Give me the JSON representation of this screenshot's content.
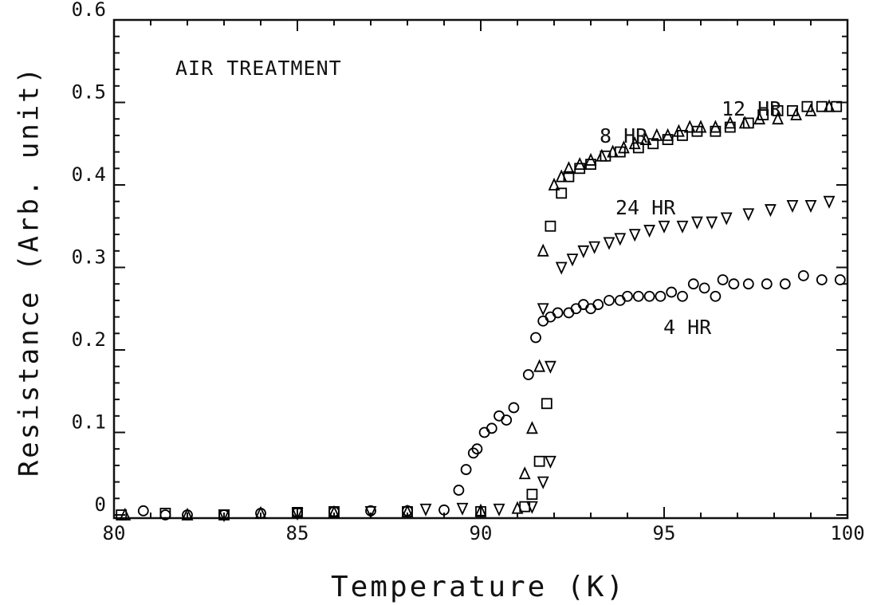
{
  "chart_data": {
    "type": "scatter",
    "annotations": [
      "AIR TREATMENT"
    ],
    "xlabel": "Temperature (K)",
    "ylabel": "Resistance (Arb. unit)",
    "xlim": [
      80,
      100
    ],
    "xticks": [
      80,
      85,
      90,
      95,
      100
    ],
    "ylim": [
      0,
      0.6
    ],
    "yticks": [
      0,
      0.1,
      0.2,
      0.3,
      0.4,
      0.5,
      0.6
    ],
    "series": [
      {
        "name": "4 HR",
        "marker": "circle",
        "color": "#000000",
        "x": [
          80.8,
          81.4,
          82,
          83,
          84,
          85,
          86,
          87,
          88,
          89,
          89.4,
          89.6,
          89.8,
          89.9,
          90.1,
          90.3,
          90.5,
          90.7,
          90.9,
          91.3,
          91.5,
          91.7,
          91.9,
          92.1,
          92.4,
          92.6,
          92.8,
          93,
          93.2,
          93.5,
          93.8,
          94,
          94.3,
          94.6,
          94.9,
          95.2,
          95.5,
          95.8,
          96.1,
          96.4,
          96.6,
          96.9,
          97.3,
          97.8,
          98.3,
          98.8,
          99.3,
          99.8
        ],
        "values": [
          0.005,
          0,
          0,
          0,
          0.002,
          0.003,
          0.004,
          0.005,
          0.005,
          0.006,
          0.03,
          0.055,
          0.075,
          0.08,
          0.1,
          0.105,
          0.12,
          0.115,
          0.13,
          0.17,
          0.215,
          0.235,
          0.24,
          0.245,
          0.245,
          0.25,
          0.255,
          0.25,
          0.255,
          0.26,
          0.26,
          0.265,
          0.265,
          0.265,
          0.265,
          0.27,
          0.265,
          0.28,
          0.275,
          0.265,
          0.285,
          0.28,
          0.28,
          0.28,
          0.28,
          0.29,
          0.285,
          0.285
        ]
      },
      {
        "name": "8 HR",
        "marker": "triangle-up",
        "color": "#000000",
        "x": [
          80.3,
          82,
          84,
          86,
          88,
          90,
          91,
          91.2,
          91.4,
          91.6,
          91.7,
          92,
          92.2,
          92.4,
          92.7,
          93,
          93.3,
          93.6,
          93.9,
          94.2,
          94.5,
          94.8,
          95.1,
          95.4,
          95.7,
          96,
          96.4,
          96.8,
          97.2,
          97.6,
          98.1,
          98.6,
          99,
          99.5
        ],
        "values": [
          0,
          0,
          0.002,
          0.003,
          0.004,
          0.005,
          0.008,
          0.05,
          0.105,
          0.18,
          0.32,
          0.4,
          0.41,
          0.42,
          0.425,
          0.43,
          0.435,
          0.44,
          0.445,
          0.45,
          0.455,
          0.46,
          0.46,
          0.465,
          0.47,
          0.47,
          0.47,
          0.475,
          0.475,
          0.48,
          0.48,
          0.485,
          0.49,
          0.495
        ]
      },
      {
        "name": "12 HR",
        "marker": "square",
        "color": "#000000",
        "x": [
          80.2,
          81.4,
          83,
          85,
          86,
          88,
          90,
          91.2,
          91.4,
          91.6,
          91.8,
          91.9,
          92.2,
          92.4,
          92.7,
          93,
          93.4,
          93.8,
          94.3,
          94.7,
          95.1,
          95.5,
          95.9,
          96.4,
          96.8,
          97.3,
          97.7,
          98.1,
          98.5,
          98.9,
          99.3,
          99.7
        ],
        "values": [
          0,
          0.002,
          0,
          0.003,
          0.004,
          0.004,
          0.004,
          0.01,
          0.025,
          0.065,
          0.135,
          0.35,
          0.39,
          0.41,
          0.42,
          0.425,
          0.435,
          0.44,
          0.445,
          0.45,
          0.455,
          0.46,
          0.465,
          0.465,
          0.47,
          0.475,
          0.485,
          0.49,
          0.49,
          0.495,
          0.495,
          0.495
        ]
      },
      {
        "name": "24 HR",
        "marker": "triangle-down",
        "color": "#000000",
        "x": [
          83,
          85,
          87,
          88.5,
          89.5,
          90.5,
          91.4,
          91.7,
          91.9,
          91.9,
          91.7,
          92.2,
          92.5,
          92.8,
          93.1,
          93.5,
          93.8,
          94.2,
          94.6,
          95,
          95.5,
          95.9,
          96.3,
          96.7,
          97.3,
          97.9,
          98.5,
          99,
          99.5
        ],
        "values": [
          0,
          0.002,
          0.004,
          0.007,
          0.008,
          0.007,
          0.01,
          0.04,
          0.065,
          0.18,
          0.25,
          0.3,
          0.31,
          0.32,
          0.325,
          0.33,
          0.335,
          0.34,
          0.345,
          0.35,
          0.35,
          0.355,
          0.355,
          0.36,
          0.365,
          0.37,
          0.375,
          0.375,
          0.38
        ]
      }
    ]
  }
}
